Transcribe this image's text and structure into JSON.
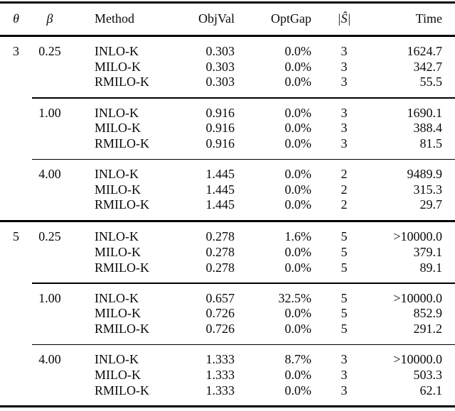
{
  "header": {
    "theta": "θ",
    "beta": "β",
    "method": "Method",
    "objval": "ObjVal",
    "optgap": "OptGap",
    "s_hat": "|Ŝ|",
    "time": "Time"
  },
  "groups": [
    {
      "theta": "3",
      "blocks": [
        {
          "beta": "0.25",
          "rows": [
            {
              "method": "INLO-K",
              "objval": "0.303",
              "optgap": "0.0%",
              "s": "3",
              "time": "1624.7"
            },
            {
              "method": "MILO-K",
              "objval": "0.303",
              "optgap": "0.0%",
              "s": "3",
              "time": "342.7"
            },
            {
              "method": "RMILO-K",
              "objval": "0.303",
              "optgap": "0.0%",
              "s": "3",
              "time": "55.5"
            }
          ]
        },
        {
          "beta": "1.00",
          "rows": [
            {
              "method": "INLO-K",
              "objval": "0.916",
              "optgap": "0.0%",
              "s": "3",
              "time": "1690.1"
            },
            {
              "method": "MILO-K",
              "objval": "0.916",
              "optgap": "0.0%",
              "s": "3",
              "time": "388.4"
            },
            {
              "method": "RMILO-K",
              "objval": "0.916",
              "optgap": "0.0%",
              "s": "3",
              "time": "81.5"
            }
          ]
        },
        {
          "beta": "4.00",
          "rows": [
            {
              "method": "INLO-K",
              "objval": "1.445",
              "optgap": "0.0%",
              "s": "2",
              "time": "9489.9"
            },
            {
              "method": "MILO-K",
              "objval": "1.445",
              "optgap": "0.0%",
              "s": "2",
              "time": "315.3"
            },
            {
              "method": "RMILO-K",
              "objval": "1.445",
              "optgap": "0.0%",
              "s": "2",
              "time": "29.7"
            }
          ]
        }
      ]
    },
    {
      "theta": "5",
      "blocks": [
        {
          "beta": "0.25",
          "rows": [
            {
              "method": "INLO-K",
              "objval": "0.278",
              "optgap": "1.6%",
              "s": "5",
              "time": ">10000.0"
            },
            {
              "method": "MILO-K",
              "objval": "0.278",
              "optgap": "0.0%",
              "s": "5",
              "time": "379.1"
            },
            {
              "method": "RMILO-K",
              "objval": "0.278",
              "optgap": "0.0%",
              "s": "5",
              "time": "89.1"
            }
          ]
        },
        {
          "beta": "1.00",
          "rows": [
            {
              "method": "INLO-K",
              "objval": "0.657",
              "optgap": "32.5%",
              "s": "5",
              "time": ">10000.0"
            },
            {
              "method": "MILO-K",
              "objval": "0.726",
              "optgap": "0.0%",
              "s": "5",
              "time": "852.9"
            },
            {
              "method": "RMILO-K",
              "objval": "0.726",
              "optgap": "0.0%",
              "s": "5",
              "time": "291.2"
            }
          ]
        },
        {
          "beta": "4.00",
          "rows": [
            {
              "method": "INLO-K",
              "objval": "1.333",
              "optgap": "8.7%",
              "s": "3",
              "time": ">10000.0"
            },
            {
              "method": "MILO-K",
              "objval": "1.333",
              "optgap": "0.0%",
              "s": "3",
              "time": "503.3"
            },
            {
              "method": "RMILO-K",
              "objval": "1.333",
              "optgap": "0.0%",
              "s": "3",
              "time": "62.1"
            }
          ]
        }
      ]
    }
  ]
}
